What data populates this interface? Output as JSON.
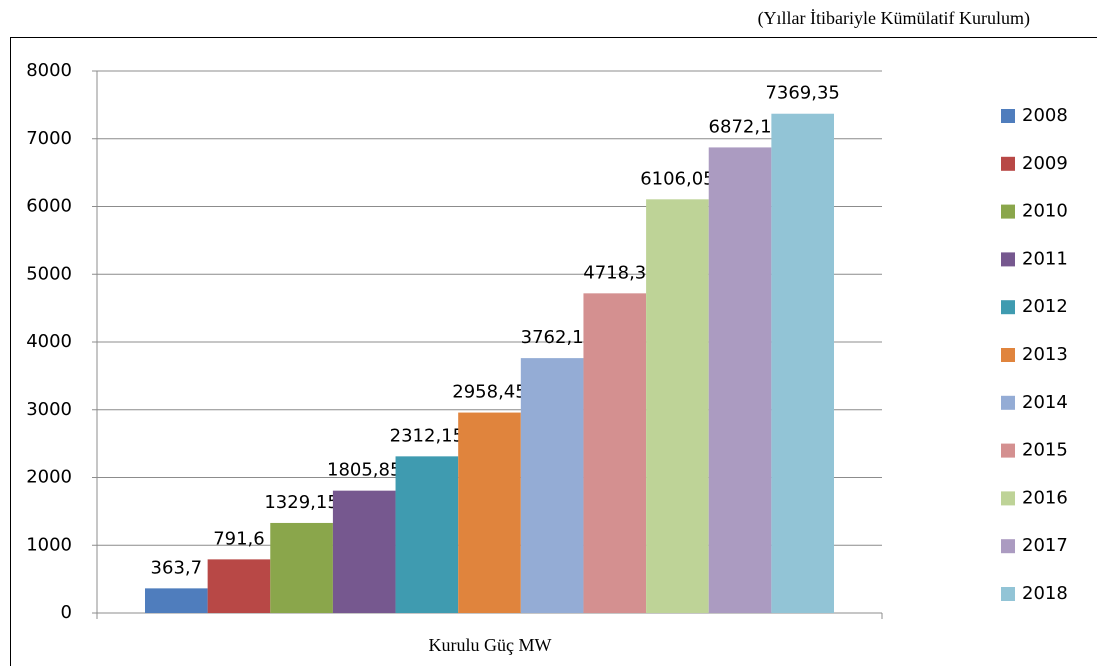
{
  "chart_data": {
    "type": "bar",
    "subtitle": "(Yıllar İtibariyle Kümülatif Kurulum)",
    "x_label": "Kurulu Güç MW",
    "categories": [
      "Kurulu Güç MW"
    ],
    "series": [
      {
        "name": "2008",
        "color": "#4f7dbd",
        "values": [
          363.7
        ],
        "value_labels": [
          "363,7"
        ]
      },
      {
        "name": "2009",
        "color": "#b84846",
        "values": [
          791.6
        ],
        "value_labels": [
          "791,6"
        ]
      },
      {
        "name": "2010",
        "color": "#8aa64b",
        "values": [
          1329.15
        ],
        "value_labels": [
          "1329,15"
        ]
      },
      {
        "name": "2011",
        "color": "#76588f",
        "values": [
          1805.85
        ],
        "value_labels": [
          "1805,85"
        ]
      },
      {
        "name": "2012",
        "color": "#3f9bb0",
        "values": [
          2312.15
        ],
        "value_labels": [
          "2312,15"
        ]
      },
      {
        "name": "2013",
        "color": "#e0843d",
        "values": [
          2958.45
        ],
        "value_labels": [
          "2958,45"
        ]
      },
      {
        "name": "2014",
        "color": "#94acd5",
        "values": [
          3762.1
        ],
        "value_labels": [
          "3762,1"
        ]
      },
      {
        "name": "2015",
        "color": "#d49090",
        "values": [
          4718.3
        ],
        "value_labels": [
          "4718,3"
        ]
      },
      {
        "name": "2016",
        "color": "#bed397",
        "values": [
          6106.05
        ],
        "value_labels": [
          "6106,05"
        ]
      },
      {
        "name": "2017",
        "color": "#ab9bc1",
        "values": [
          6872.1
        ],
        "value_labels": [
          "6872,1"
        ]
      },
      {
        "name": "2018",
        "color": "#92c4d6",
        "values": [
          7369.35
        ],
        "value_labels": [
          "7369,35"
        ]
      }
    ],
    "ylim": [
      0,
      8000
    ],
    "yticks": [
      0,
      1000,
      2000,
      3000,
      4000,
      5000,
      6000,
      7000,
      8000
    ],
    "grid": true,
    "legend": "right"
  }
}
